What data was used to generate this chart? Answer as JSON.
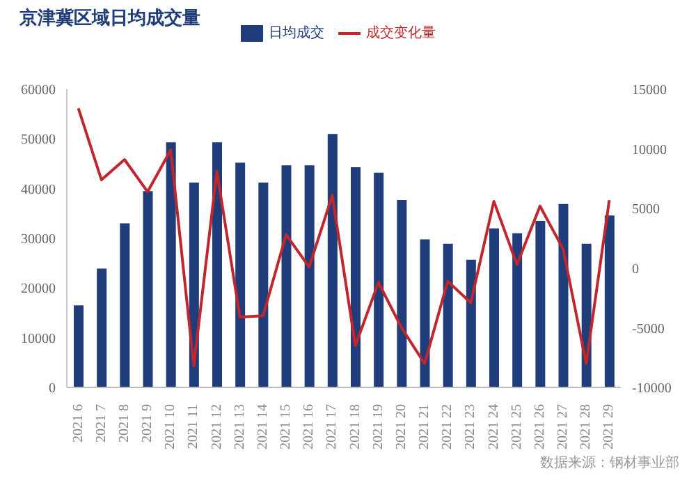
{
  "chart_data": {
    "type": "bar",
    "title": "京津冀区域日均成交量",
    "categories": [
      "2021 6",
      "2021 7",
      "2021 8",
      "2021 9",
      "2021 10",
      "2021 11",
      "2021 12",
      "2021 13",
      "2021 14",
      "2021 15",
      "2021 16",
      "2021 17",
      "2021 18",
      "2021 19",
      "2021 20",
      "2021 21",
      "2021 22",
      "2021 23",
      "2021 24",
      "2021 25",
      "2021 26",
      "2021 27",
      "2021 28",
      "2021 29"
    ],
    "series": [
      {
        "name": "日均成交",
        "color": "#1f3d7a",
        "values": [
          16500,
          23900,
          33000,
          39500,
          49300,
          41200,
          49300,
          45200,
          41200,
          44700,
          44700,
          51000,
          44300,
          43200,
          37700,
          29800,
          28900,
          25700,
          32000,
          31000,
          33500,
          36900,
          28900,
          34600
        ]
      },
      {
        "name": "成交变化量",
        "type": "line",
        "axis": "y2",
        "color": "#c0272d",
        "values": [
          13400,
          7400,
          9100,
          6400,
          9900,
          -8200,
          8100,
          -4100,
          -4000,
          2800,
          100,
          6100,
          -6500,
          -1200,
          -5000,
          -8000,
          -1100,
          -2900,
          5600,
          300,
          5200,
          1600,
          -8000,
          5700
        ]
      }
    ],
    "ylim": [
      0,
      60000
    ],
    "yticks": [
      0,
      10000,
      20000,
      30000,
      40000,
      50000,
      60000
    ],
    "y2lim": [
      -10000,
      15000
    ],
    "y2ticks": [
      -10000,
      -5000,
      0,
      5000,
      10000,
      15000
    ],
    "grid": false,
    "legend": "top",
    "marker": "none",
    "annotations": [
      "数据来源：钢材事业部"
    ]
  }
}
